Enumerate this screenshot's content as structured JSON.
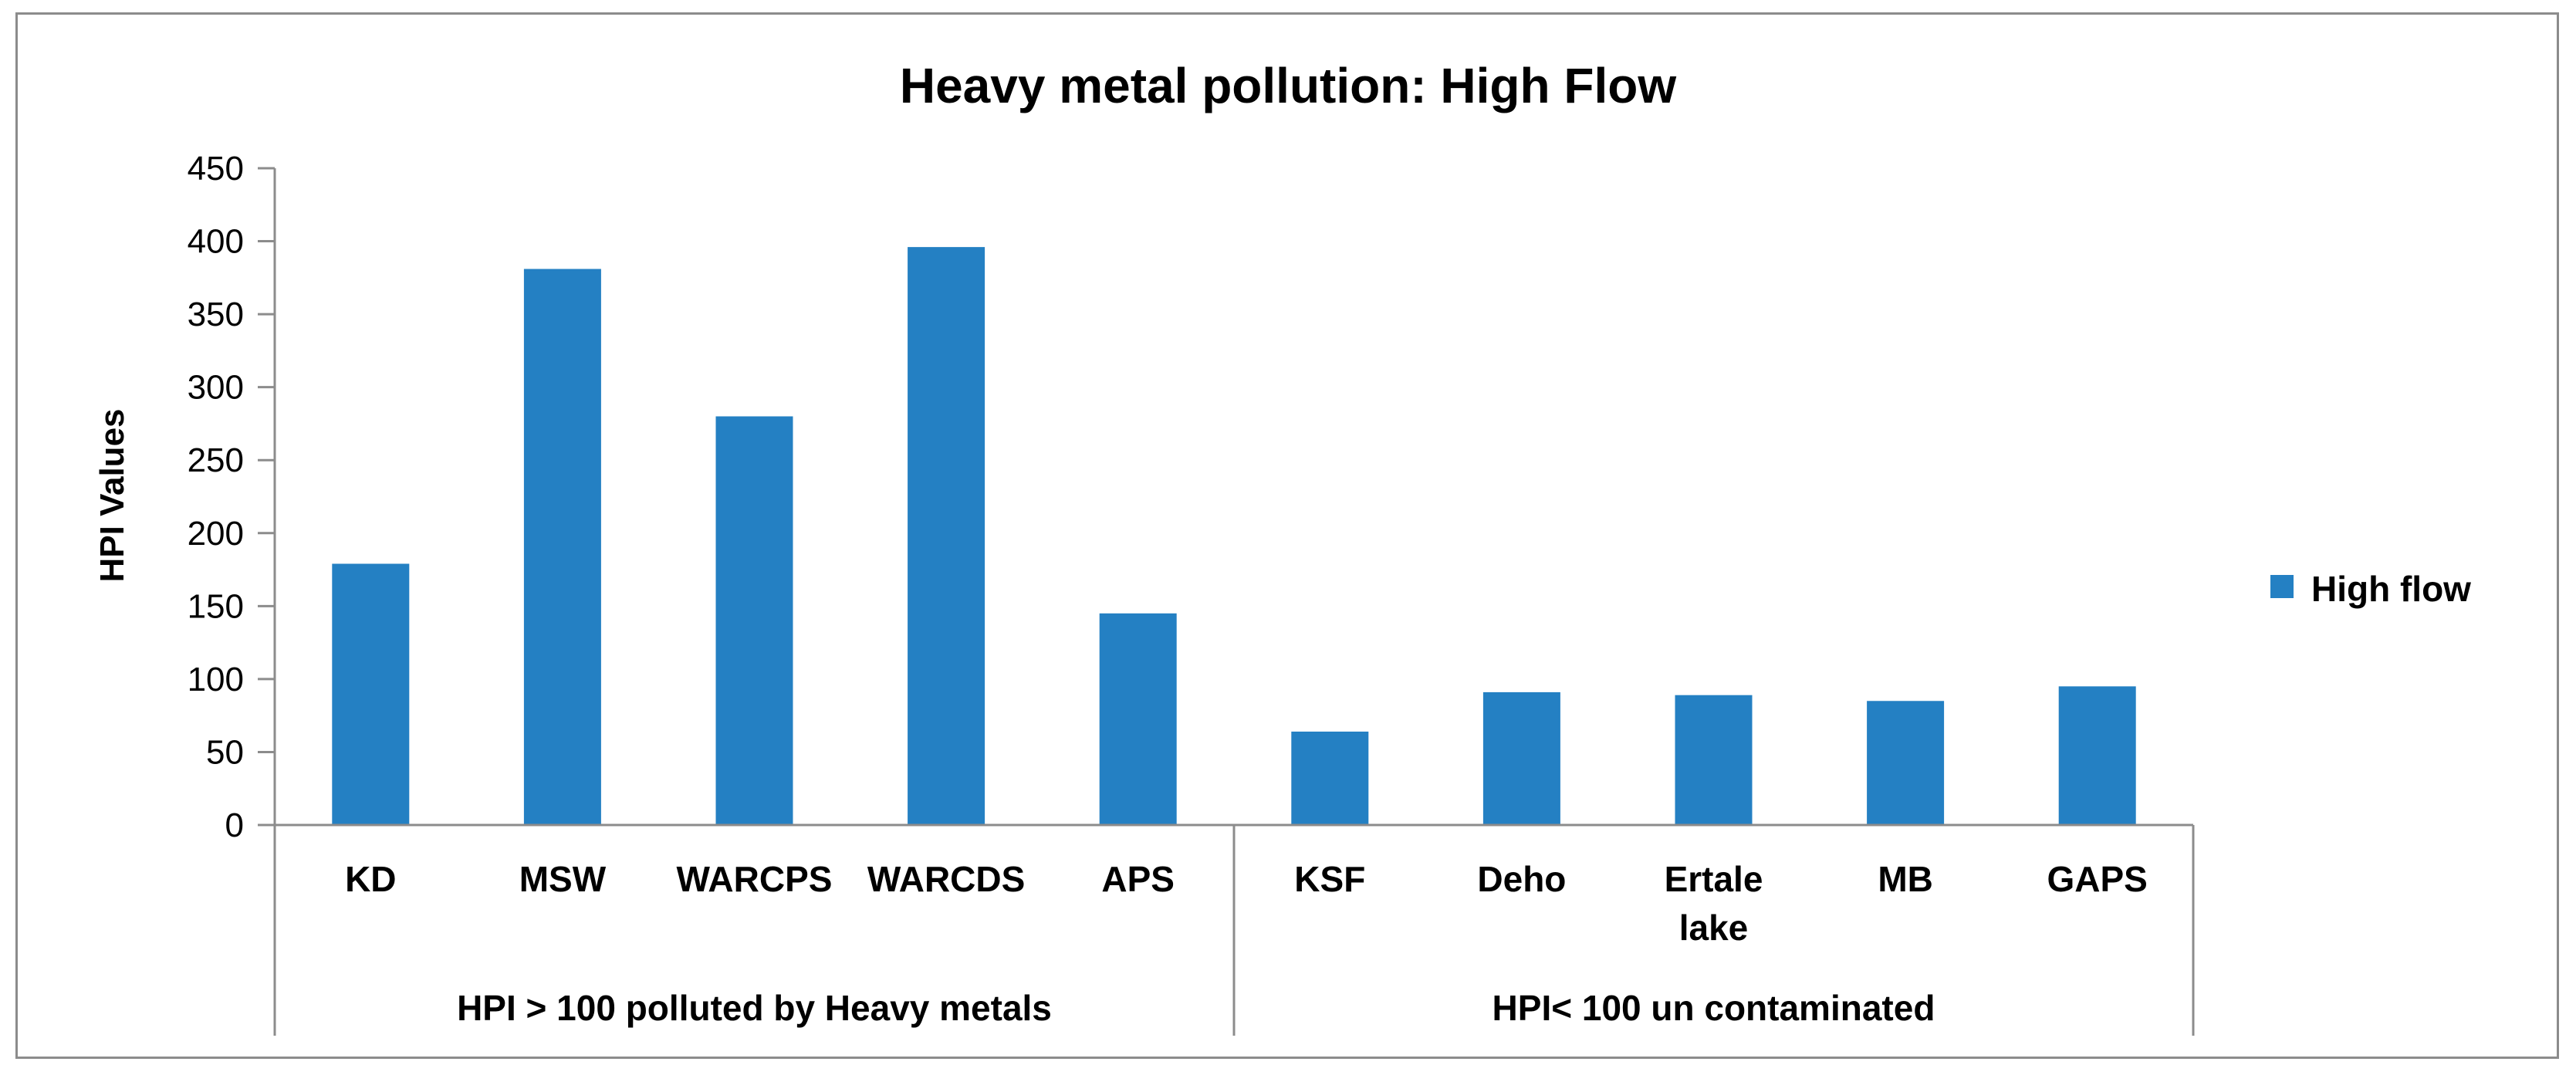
{
  "chart_data": {
    "type": "bar",
    "title": "Heavy metal pollution: High Flow",
    "ylabel": "HPI Values",
    "xlabel": "",
    "ylim": [
      0,
      450
    ],
    "yticks": [
      0,
      50,
      100,
      150,
      200,
      250,
      300,
      350,
      400,
      450
    ],
    "grid": false,
    "legend_position": "right",
    "categories": [
      "KD",
      "MSW",
      "WARCPS",
      "WARCDS",
      "APS",
      "KSF",
      "Deho",
      "Ertale lake",
      "MB",
      "GAPS"
    ],
    "groups": [
      {
        "label": "HPI > 100  polluted by Heavy metals",
        "categories": [
          "KD",
          "MSW",
          "WARCPS",
          "WARCDS",
          "APS"
        ]
      },
      {
        "label": "HPI< 100 un contaminated",
        "categories": [
          "KSF",
          "Deho",
          "Ertale lake",
          "MB",
          "GAPS"
        ]
      }
    ],
    "series": [
      {
        "name": "High flow",
        "color": "#2480c3",
        "values": [
          179,
          381,
          280,
          396,
          145,
          64,
          91,
          89,
          85,
          95
        ]
      }
    ]
  }
}
